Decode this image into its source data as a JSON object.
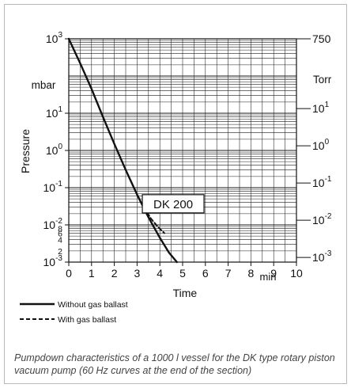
{
  "chart_data": {
    "type": "line",
    "title": "",
    "xlabel": "Time",
    "x_unit": "min",
    "ylabel": "Pressure",
    "y_unit_left": "mbar",
    "y_unit_right": "Torr",
    "y_scale": "log",
    "xlim": [
      0,
      10
    ],
    "ylim": [
      0.001,
      1000
    ],
    "grid": true,
    "x_ticks": [
      "0",
      "1",
      "2",
      "3",
      "4",
      "5",
      "6",
      "7",
      "8",
      "9",
      "10"
    ],
    "y_ticks_left": [
      {
        "value": 1000,
        "base": "10",
        "exp": "3"
      },
      {
        "value": 10,
        "base": "10",
        "exp": "1"
      },
      {
        "value": 1,
        "base": "10",
        "exp": "0"
      },
      {
        "value": 0.1,
        "base": "10",
        "exp": "-1"
      },
      {
        "value": 0.01,
        "base": "10",
        "exp": "-2"
      },
      {
        "value": 0.001,
        "base": "10",
        "exp": "-3"
      }
    ],
    "y_minor_left": [
      {
        "value": 0.008,
        "label": "8"
      },
      {
        "value": 0.006,
        "label": "6"
      },
      {
        "value": 0.004,
        "label": "4"
      },
      {
        "value": 0.002,
        "label": "2"
      }
    ],
    "y_ticks_right": [
      {
        "value_mbar": 1000,
        "base": "750",
        "exp": ""
      },
      {
        "value_mbar": 13.33,
        "base": "10",
        "exp": "1"
      },
      {
        "value_mbar": 1.333,
        "base": "10",
        "exp": "0"
      },
      {
        "value_mbar": 0.1333,
        "base": "10",
        "exp": "-1"
      },
      {
        "value_mbar": 0.01333,
        "base": "10",
        "exp": "-2"
      },
      {
        "value_mbar": 0.001333,
        "base": "10",
        "exp": "-3"
      }
    ],
    "annotation": {
      "text": "DK 200",
      "x": 3.3,
      "y": 0.02
    },
    "series": [
      {
        "name": "Without gas ballast",
        "style": "solid",
        "x": [
          0,
          0.5,
          1.0,
          1.5,
          2.0,
          2.5,
          3.0,
          3.5,
          4.0,
          4.4,
          4.75
        ],
        "y": [
          1000,
          220,
          45,
          8,
          1.5,
          0.3,
          0.065,
          0.016,
          0.0045,
          0.0018,
          0.001
        ]
      },
      {
        "name": "With gas ballast",
        "style": "dashed",
        "x": [
          3.3,
          3.6,
          3.9,
          4.2
        ],
        "y": [
          0.03,
          0.015,
          0.009,
          0.006
        ]
      }
    ]
  },
  "caption": "Pumpdown characteristics of a 1000 l vessel for the DK type rotary piston vacuum pump (60 Hz curves at the end of the section)"
}
